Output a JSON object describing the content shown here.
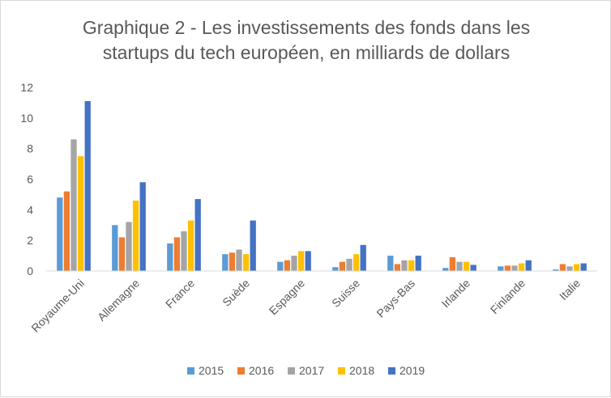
{
  "chart_data": {
    "type": "bar",
    "title_lines": [
      "Graphique 2 - Les investissements des fonds dans les",
      "startups du tech européen, en milliards de dollars"
    ],
    "categories": [
      "Royaume-Uni",
      "Allemagne",
      "France",
      "Suède",
      "Espagne",
      "Suisse",
      "Pays-Bas",
      "Irlande",
      "Finlande",
      "Italie"
    ],
    "series": [
      {
        "name": "2015",
        "color": "#5b9bd5",
        "values": [
          4.8,
          3.0,
          1.8,
          1.1,
          0.6,
          0.25,
          1.0,
          0.2,
          0.3,
          0.1
        ]
      },
      {
        "name": "2016",
        "color": "#ed7d31",
        "values": [
          5.2,
          2.2,
          2.2,
          1.2,
          0.7,
          0.6,
          0.45,
          0.9,
          0.35,
          0.45
        ]
      },
      {
        "name": "2017",
        "color": "#a5a5a5",
        "values": [
          8.6,
          3.2,
          2.6,
          1.4,
          1.0,
          0.8,
          0.7,
          0.6,
          0.35,
          0.3
        ]
      },
      {
        "name": "2018",
        "color": "#ffc000",
        "values": [
          7.5,
          4.6,
          3.3,
          1.1,
          1.3,
          1.1,
          0.7,
          0.6,
          0.5,
          0.45
        ]
      },
      {
        "name": "2019",
        "color": "#4472c4",
        "values": [
          11.1,
          5.8,
          4.7,
          3.3,
          1.3,
          1.7,
          1.0,
          0.4,
          0.7,
          0.5
        ]
      }
    ],
    "ylim": [
      0,
      12
    ],
    "yticks": [
      0,
      2,
      4,
      6,
      8,
      10,
      12
    ],
    "grid": false,
    "legend_position": "bottom"
  }
}
